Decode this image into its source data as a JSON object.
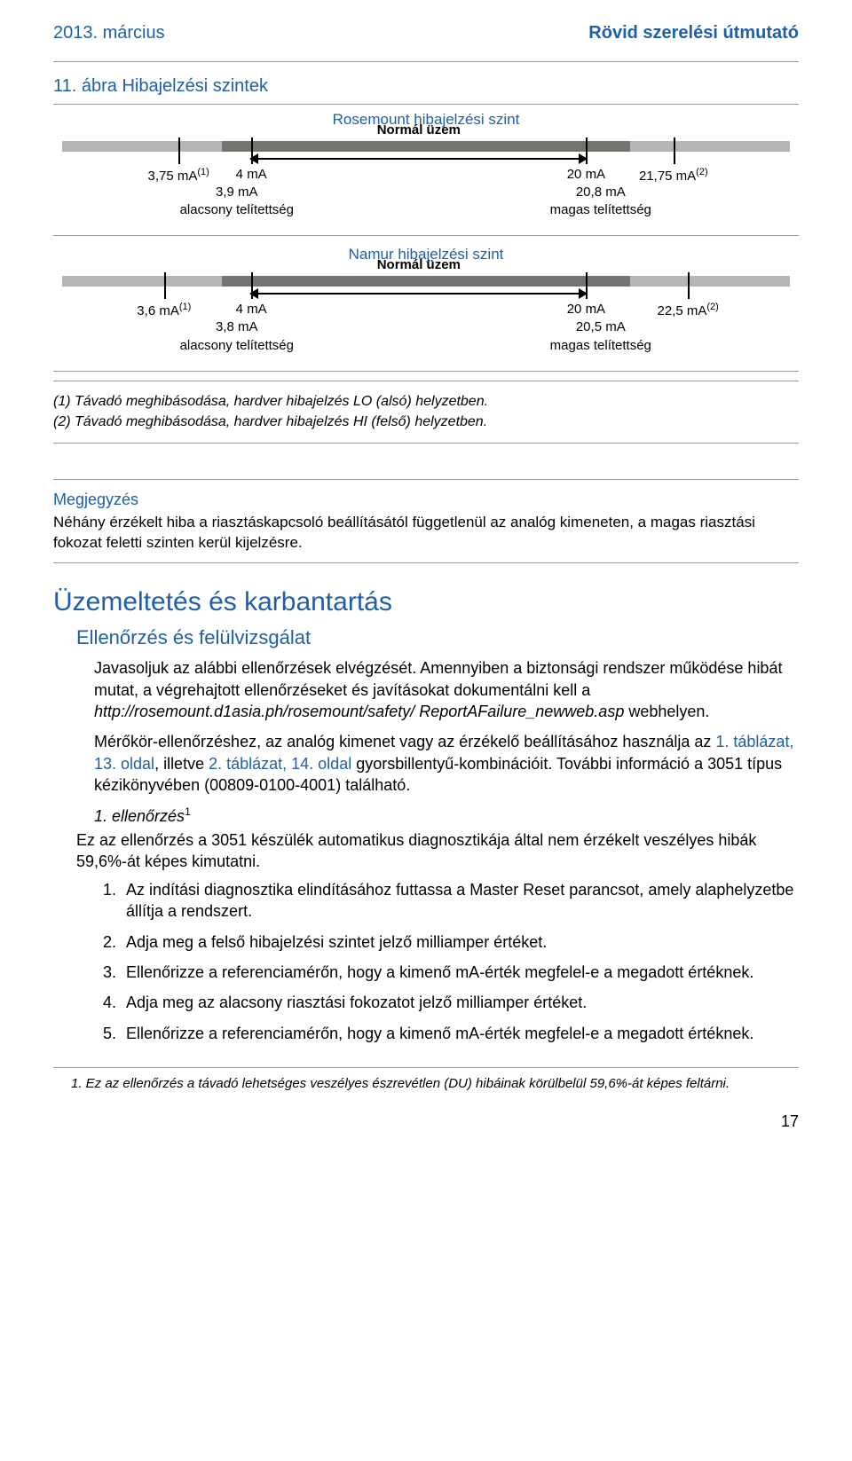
{
  "header": {
    "left": "2013. március",
    "right": "Rövid szerelési útmutató"
  },
  "figure": {
    "title": "11. ábra  Hibajelzési szintek",
    "rosemount": {
      "subtitle": "Rosemount hibajelzési szint",
      "normal": "Normál üzem",
      "v1": "3,75 mA",
      "sup1": "(1)",
      "v2": "4 mA",
      "v3": "20 mA",
      "v4": "21,75 mA",
      "sup4": "(2)",
      "low_sat_val": "3,9 mA",
      "low_sat_lbl": "alacsony telítettség",
      "high_sat_val": "20,8 mA",
      "high_sat_lbl": "magas telítettség",
      "midbar_left_pct": 22,
      "midbar_width_pct": 56,
      "tick_positions_pct": [
        16,
        26,
        72,
        84
      ],
      "arrow_left_pct": 26,
      "arrow_right_pct": 72
    },
    "namur": {
      "subtitle": "Namur hibajelzési szint",
      "normal": "Normál üzem",
      "v1": "3,6 mA",
      "sup1": "(1)",
      "v2": "4 mA",
      "v3": "20 mA",
      "v4": "22,5 mA",
      "sup4": "(2)",
      "low_sat_val": "3,8 mA",
      "low_sat_lbl": "alacsony telítettség",
      "high_sat_val": "20,5 mA",
      "high_sat_lbl": "magas telítettség",
      "midbar_left_pct": 22,
      "midbar_width_pct": 56,
      "tick_positions_pct": [
        14,
        26,
        72,
        86
      ],
      "arrow_left_pct": 26,
      "arrow_right_pct": 72
    },
    "fn1": "(1) Távadó meghibásodása, hardver hibajelzés LO (alsó) helyzetben.",
    "fn2": "(2) Távadó meghibásodása, hardver hibajelzés HI (felső) helyzetben."
  },
  "note": {
    "title": "Megjegyzés",
    "body": "Néhány érzékelt hiba a riasztáskapcsoló beállításától függetlenül az analóg kimeneten, a magas riasztási fokozat feletti szinten kerül kijelzésre."
  },
  "section": {
    "main": "Üzemeltetés és karbantartás",
    "sub": "Ellenőrzés és felülvizsgálat",
    "p1a": "Javasoljuk az alábbi ellenőrzések elvégzését. Amennyiben a biztonsági rendszer működése hibát mutat, a végrehajtott ellenőrzéseket és javításokat dokumentálni kell a ",
    "p1_ital": "http://rosemount.d1asia.ph/rosemount/safety/ ReportAFailure_newweb.asp",
    "p1b": " webhelyen.",
    "p2a": "Mérőkör-ellenőrzéshez, az analóg kimenet vagy az érzékelő beállításához használja az ",
    "p2_link1": "1. táblázat, 13. oldal",
    "p2_mid": ", illetve ",
    "p2_link2": "2. táblázat, 14. oldal",
    "p2b": " gyorsbillentyű-kombinációit. További információ a 3051 típus kézikönyvében (00809-0100-4001) található.",
    "step_title": "1. ellenőrzés",
    "step_sup": "1",
    "lead": "Ez az ellenőrzés a 3051 készülék automatikus diagnosztikája által nem érzékelt veszélyes hibák 59,6%-át képes kimutatni.",
    "steps": [
      "Az indítási diagnosztika elindításához futtassa a Master Reset parancsot, amely alaphelyzetbe állítja a rendszert.",
      "Adja meg a felső hibajelzési szintet jelző milliamper értéket.",
      "Ellenőrizze a referenciamérőn, hogy a kimenő mA-érték megfelel-e a megadott értéknek.",
      "Adja meg az alacsony riasztási fokozatot jelző milliamper értéket.",
      "Ellenőrizze a referenciamérőn, hogy a kimenő mA-érték megfelel-e a megadott értéknek."
    ]
  },
  "bottom_fn": "1.  Ez az ellenőrzés a távadó lehetséges veszélyes észrevétlen (DU) hibáinak körülbelül 59,6%-át képes feltárni.",
  "page_number": "17",
  "colors": {
    "blue": "#1f5fa9",
    "bar_light": "#b6b5b5",
    "bar_dark": "#74736f"
  }
}
